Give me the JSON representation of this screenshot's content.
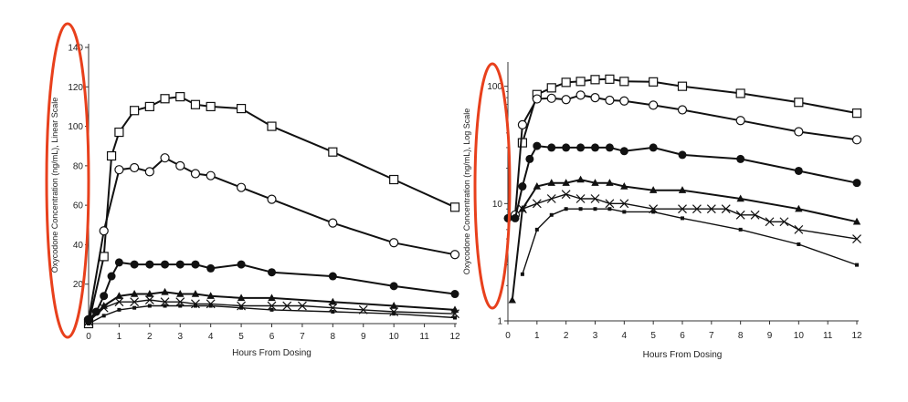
{
  "chart_data": [
    {
      "type": "line",
      "xlabel": "Hours From Dosing",
      "ylabel": "Oxycodone Concentration (ng/mL), Linear Scale",
      "xlim": [
        0,
        12
      ],
      "ylim": [
        0,
        140
      ],
      "yscale": "linear",
      "x_ticks": [
        "0",
        "1",
        "2",
        "3",
        "4",
        "5",
        "6",
        "7",
        "8",
        "9",
        "10",
        "11",
        "12"
      ],
      "y_ticks": [
        "20",
        "40",
        "60",
        "80",
        "100",
        "120",
        "140"
      ],
      "grid": false,
      "highlight": "red oval around y-axis tick labels",
      "series": [
        {
          "marker": "open-square",
          "x": [
            0,
            0.5,
            0.75,
            1,
            1.5,
            2,
            2.5,
            3,
            3.5,
            4,
            5,
            6,
            8,
            10,
            12
          ],
          "y": [
            0,
            34,
            85,
            97,
            108,
            110,
            114,
            115,
            111,
            110,
            109,
            100,
            87,
            73,
            59
          ]
        },
        {
          "marker": "open-circle",
          "x": [
            0,
            0.5,
            1,
            1.5,
            2,
            2.5,
            3,
            3.5,
            4,
            5,
            6,
            8,
            10,
            12
          ],
          "y": [
            2,
            47,
            78,
            79,
            77,
            84,
            80,
            76,
            75,
            69,
            63,
            51,
            41,
            35
          ]
        },
        {
          "marker": "filled-circle",
          "x": [
            0,
            0.25,
            0.5,
            0.75,
            1,
            1.5,
            2,
            2.5,
            3,
            3.5,
            4,
            5,
            6,
            8,
            10,
            12
          ],
          "y": [
            2,
            6,
            14,
            24,
            31,
            30,
            30,
            30,
            30,
            30,
            28,
            30,
            26,
            24,
            19,
            15
          ]
        },
        {
          "marker": "filled-triangle",
          "x": [
            0,
            0.5,
            1,
            1.5,
            2,
            2.5,
            3,
            3.5,
            4,
            5,
            6,
            8,
            10,
            12
          ],
          "y": [
            1,
            9,
            14,
            15,
            15,
            16,
            15,
            15,
            14,
            13,
            13,
            11,
            9,
            7
          ]
        },
        {
          "marker": "x",
          "x": [
            0,
            0.5,
            1,
            1.5,
            2,
            2.5,
            3,
            3.5,
            4,
            5,
            6,
            6.5,
            7,
            8,
            9,
            10,
            12
          ],
          "y": [
            1,
            8,
            11,
            11,
            12,
            11,
            11,
            10,
            10,
            9,
            9,
            9,
            9,
            8,
            7,
            6,
            5
          ]
        },
        {
          "marker": "small-filled-square",
          "x": [
            0,
            0.5,
            1,
            1.5,
            2,
            2.5,
            3,
            3.5,
            4,
            5,
            6,
            8,
            10,
            12
          ],
          "y": [
            0,
            4,
            7,
            8,
            9,
            9,
            9,
            9,
            9,
            8,
            7,
            6,
            5,
            3
          ]
        }
      ]
    },
    {
      "type": "line",
      "xlabel": "Hours From Dosing",
      "ylabel": "Oxycodone Concentration (ng/mL), Log Scale",
      "xlim": [
        0,
        12
      ],
      "ylim": [
        1,
        150
      ],
      "yscale": "log",
      "x_ticks": [
        "0",
        "1",
        "2",
        "3",
        "4",
        "5",
        "6",
        "7",
        "8",
        "9",
        "10",
        "11",
        "12"
      ],
      "y_ticks": [
        "1",
        "10",
        "100"
      ],
      "grid": false,
      "highlight": "red oval around y-axis tick labels",
      "series": [
        {
          "marker": "open-square",
          "x": [
            0.5,
            1,
            1.5,
            2,
            2.5,
            3,
            3.5,
            4,
            5,
            6,
            8,
            10,
            12
          ],
          "y": [
            33,
            85,
            97,
            108,
            110,
            114,
            115,
            110,
            109,
            100,
            87,
            73,
            59
          ]
        },
        {
          "marker": "open-circle",
          "x": [
            0.25,
            0.5,
            1,
            1.5,
            2,
            2.5,
            3,
            3.5,
            4,
            5,
            6,
            8,
            10,
            12
          ],
          "y": [
            8,
            47,
            78,
            79,
            77,
            84,
            80,
            76,
            75,
            69,
            63,
            51,
            41,
            35
          ]
        },
        {
          "marker": "filled-circle",
          "x": [
            0,
            0.25,
            0.5,
            0.75,
            1,
            1.5,
            2,
            2.5,
            3,
            3.5,
            4,
            5,
            6,
            8,
            10,
            12
          ],
          "y": [
            7.5,
            7.5,
            14,
            24,
            31,
            30,
            30,
            30,
            30,
            30,
            28,
            30,
            26,
            24,
            19,
            15
          ]
        },
        {
          "marker": "filled-triangle",
          "x": [
            0.15,
            0.5,
            1,
            1.5,
            2,
            2.5,
            3,
            3.5,
            4,
            5,
            6,
            8,
            10,
            12
          ],
          "y": [
            1.5,
            9,
            14,
            15,
            15,
            16,
            15,
            15,
            14,
            13,
            13,
            11,
            9,
            7
          ]
        },
        {
          "marker": "x",
          "x": [
            0.5,
            1,
            1.5,
            2,
            2.5,
            3,
            3.5,
            4,
            5,
            6,
            6.5,
            7,
            7.5,
            8,
            8.5,
            9,
            9.5,
            10,
            12
          ],
          "y": [
            9,
            10,
            11,
            12,
            11,
            11,
            10,
            10,
            9,
            9,
            9,
            9,
            9,
            8,
            8,
            7,
            7,
            6,
            5
          ]
        },
        {
          "marker": "small-filled-square",
          "x": [
            0.5,
            1,
            1.5,
            2,
            2.5,
            3,
            3.5,
            4,
            5,
            6,
            8,
            10,
            12
          ],
          "y": [
            2.5,
            6,
            8,
            9,
            9,
            9,
            9,
            8.5,
            8.5,
            7.5,
            6,
            4.5,
            3
          ]
        }
      ]
    }
  ]
}
